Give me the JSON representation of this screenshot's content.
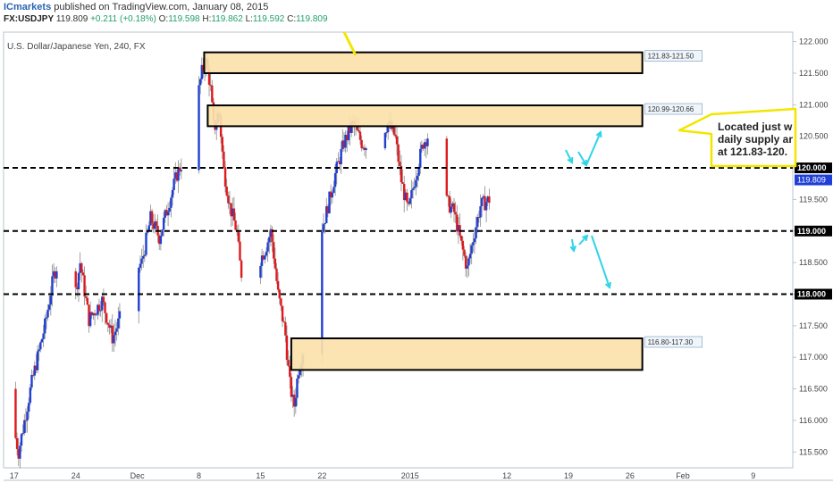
{
  "header": {
    "brand": "ICmarkets",
    "published": " published on TradingView.com, January 08, 2015",
    "symbol": "FX:USDJPY",
    "last": "119.809",
    "change": "+0.211 (+0.18%)",
    "o_label": "O:",
    "o": "119.598",
    "h_label": "H:",
    "h": "119.862",
    "l_label": "L:",
    "l": "119.592",
    "c_label": "C:",
    "c": "119.809"
  },
  "colors": {
    "up": "#1f3fd6",
    "down": "#e0191d",
    "zone_fill": "#fbe1ab",
    "zone_border": "#000000",
    "arrow": "#2fd4e6",
    "callout_border": "#f2e600",
    "last_price_badge": "#1f3fd6"
  },
  "chart_data": {
    "type": "candlestick",
    "title": "U.S. Dollar/Japanese Yen, 240, FX",
    "ylim": [
      115.25,
      122.15
    ],
    "y_ticks": [
      "122.000",
      "121.500",
      "121.000",
      "120.500",
      "120.000",
      "119.500",
      "119.000",
      "118.500",
      "118.000",
      "117.500",
      "117.000",
      "116.500",
      "116.000",
      "115.500"
    ],
    "y_tick_values": [
      122.0,
      121.5,
      121.0,
      120.5,
      120.0,
      119.5,
      119.0,
      118.5,
      118.0,
      117.5,
      117.0,
      116.5,
      116.0,
      115.5
    ],
    "x_ticks": [
      "17",
      "24",
      "Dec",
      "8",
      "15",
      "22",
      "2015",
      "12",
      "19",
      "26",
      "Feb",
      "9"
    ],
    "x_tick_days": [
      0,
      7,
      14,
      21,
      28,
      35,
      45,
      56,
      63,
      70,
      76,
      84
    ],
    "xlim_days": [
      -1.2,
      88.5
    ],
    "last_price": "119.809",
    "last_price_value": 119.809,
    "horizontal_levels": [
      {
        "label": "120.000",
        "value": 120.0
      },
      {
        "label": "119.000",
        "value": 119.0
      },
      {
        "label": "118.000",
        "value": 118.0
      }
    ],
    "zones": [
      {
        "label": "121.83-121.50",
        "top": 121.83,
        "bottom": 121.5,
        "start_day": 21.6,
        "end_day": 71.4
      },
      {
        "label": "120.99-120.66",
        "top": 120.99,
        "bottom": 120.66,
        "start_day": 22.0,
        "end_day": 71.4
      },
      {
        "label": "116.80-117.30",
        "top": 117.3,
        "bottom": 116.8,
        "start_day": 31.5,
        "end_day": 71.4
      }
    ],
    "annotation": {
      "lines": [
        "Located just w",
        "daily supply ar",
        "at 121.83-120."
      ]
    },
    "path": [
      [
        -1.0,
        116.5
      ],
      [
        0.5,
        115.5
      ],
      [
        2,
        116.6
      ],
      [
        3.5,
        117.5
      ],
      [
        4.5,
        118.3
      ],
      [
        5.5,
        118.7
      ],
      [
        6.5,
        117.6
      ],
      [
        7.5,
        118.5
      ],
      [
        8.5,
        117.6
      ],
      [
        10,
        117.9
      ],
      [
        11.2,
        117.3
      ],
      [
        12.5,
        117.8
      ],
      [
        13.5,
        118.3
      ],
      [
        14.5,
        118.5
      ],
      [
        15.5,
        119.2
      ],
      [
        16.5,
        118.9
      ],
      [
        17.5,
        119.4
      ],
      [
        18.5,
        119.9
      ],
      [
        19.5,
        120.2
      ],
      [
        20.5,
        120.8
      ],
      [
        21.3,
        121.5
      ],
      [
        21.8,
        121.7
      ],
      [
        22.3,
        121.3
      ],
      [
        22.7,
        120.6
      ],
      [
        23.3,
        120.9
      ],
      [
        23.8,
        120.0
      ],
      [
        24.5,
        119.4
      ],
      [
        25.3,
        119.0
      ],
      [
        25.8,
        118.3
      ],
      [
        26.5,
        118.8
      ],
      [
        27.3,
        119.1
      ],
      [
        27.8,
        118.5
      ],
      [
        28.5,
        118.7
      ],
      [
        29.2,
        119.0
      ],
      [
        30,
        118.0
      ],
      [
        30.8,
        117.4
      ],
      [
        31.3,
        116.6
      ],
      [
        31.8,
        116.2
      ],
      [
        32.3,
        116.8
      ],
      [
        33,
        117.2
      ],
      [
        33.8,
        118.4
      ],
      [
        34.5,
        118.8
      ],
      [
        35.5,
        119.3
      ],
      [
        36.5,
        119.9
      ],
      [
        37.5,
        120.4
      ],
      [
        38.5,
        120.7
      ],
      [
        39.5,
        120.4
      ],
      [
        40.5,
        120.3
      ],
      [
        41.5,
        120.5
      ],
      [
        42.5,
        120.7
      ],
      [
        43.3,
        120.5
      ],
      [
        44.0,
        119.8
      ],
      [
        44.8,
        119.3
      ],
      [
        45.5,
        119.8
      ],
      [
        46.5,
        120.4
      ],
      [
        47.5,
        120.6
      ],
      [
        48.2,
        120.1
      ],
      [
        49.0,
        119.5
      ],
      [
        50.0,
        119.3
      ],
      [
        50.8,
        118.8
      ],
      [
        51.5,
        118.4
      ],
      [
        52.2,
        118.9
      ],
      [
        53,
        119.4
      ],
      [
        54,
        119.5
      ],
      [
        55,
        119.6
      ],
      [
        55.8,
        119.7
      ]
    ]
  }
}
